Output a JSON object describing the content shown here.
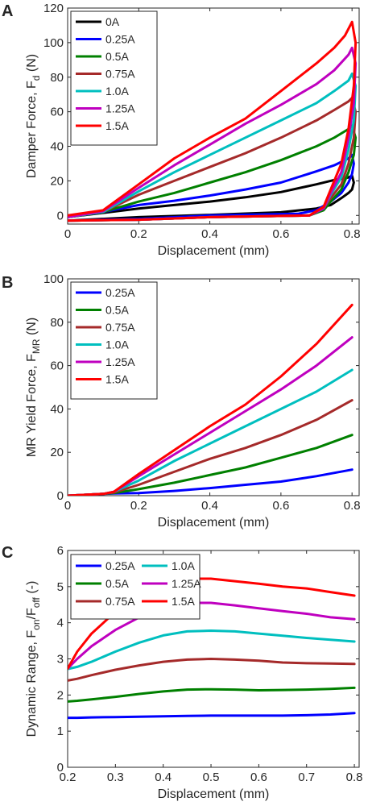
{
  "chart_data": [
    {
      "panel_label": "A",
      "type": "line",
      "xlabel": "Displacement (mm)",
      "ylabel": "Damper Force, F",
      "ylabel_sub": "d",
      "ylabel_unit": " (N)",
      "xlim": [
        0,
        0.82
      ],
      "ylim": [
        -5,
        120
      ],
      "xticks": [
        0,
        0.2,
        0.4,
        0.6,
        0.8
      ],
      "xtick_labels": [
        "0",
        "0.2",
        "0.4",
        "0.6",
        "0.8"
      ],
      "yticks": [
        0,
        20,
        40,
        60,
        80,
        100,
        120
      ],
      "ytick_labels": [
        "0",
        "20",
        "40",
        "60",
        "80",
        "100",
        "120"
      ],
      "legend_position": "top-left",
      "legend_columns": 1,
      "grid": false,
      "series": [
        {
          "name": "0A",
          "color": "#000000",
          "upper": [
            [
              0,
              -1
            ],
            [
              0.1,
              1.5
            ],
            [
              0.2,
              4
            ],
            [
              0.3,
              6
            ],
            [
              0.4,
              8
            ],
            [
              0.5,
              10.5
            ],
            [
              0.6,
              13.5
            ],
            [
              0.7,
              18
            ],
            [
              0.75,
              20.5
            ],
            [
              0.79,
              22
            ],
            [
              0.8,
              23
            ]
          ],
          "lower": [
            [
              0.8,
              23
            ],
            [
              0.805,
              19
            ],
            [
              0.8,
              15
            ],
            [
              0.79,
              13
            ],
            [
              0.77,
              10
            ],
            [
              0.74,
              6
            ],
            [
              0.7,
              4
            ],
            [
              0.6,
              1.8
            ],
            [
              0.4,
              0.3
            ],
            [
              0.2,
              -1
            ],
            [
              0,
              -3
            ]
          ]
        },
        {
          "name": "0.25A",
          "color": "#0000ff",
          "upper": [
            [
              0,
              -1
            ],
            [
              0.1,
              2
            ],
            [
              0.2,
              6
            ],
            [
              0.3,
              8.5
            ],
            [
              0.4,
              11.5
            ],
            [
              0.5,
              15
            ],
            [
              0.6,
              19
            ],
            [
              0.7,
              25.5
            ],
            [
              0.75,
              29
            ],
            [
              0.79,
              33
            ],
            [
              0.8,
              35
            ]
          ],
          "lower": [
            [
              0.8,
              35
            ],
            [
              0.805,
              30
            ],
            [
              0.8,
              24
            ],
            [
              0.79,
              19
            ],
            [
              0.77,
              13
            ],
            [
              0.74,
              8
            ],
            [
              0.7,
              3
            ],
            [
              0.65,
              1
            ],
            [
              0.4,
              0
            ],
            [
              0.2,
              -2
            ],
            [
              0,
              -3
            ]
          ]
        },
        {
          "name": "0.5A",
          "color": "#008000",
          "upper": [
            [
              0,
              -1
            ],
            [
              0.1,
              2
            ],
            [
              0.2,
              8
            ],
            [
              0.3,
              13
            ],
            [
              0.4,
              19
            ],
            [
              0.5,
              25
            ],
            [
              0.6,
              32
            ],
            [
              0.7,
              40
            ],
            [
              0.75,
              45
            ],
            [
              0.79,
              50
            ],
            [
              0.8,
              52
            ]
          ],
          "lower": [
            [
              0.8,
              52
            ],
            [
              0.81,
              45
            ],
            [
              0.805,
              35
            ],
            [
              0.79,
              25
            ],
            [
              0.77,
              15
            ],
            [
              0.74,
              8
            ],
            [
              0.72,
              3
            ],
            [
              0.68,
              0
            ],
            [
              0.4,
              -1
            ],
            [
              0.2,
              -2.5
            ],
            [
              0,
              -3
            ]
          ]
        },
        {
          "name": "0.75A",
          "color": "#a52a2a",
          "upper": [
            [
              0,
              -1
            ],
            [
              0.1,
              2
            ],
            [
              0.2,
              12
            ],
            [
              0.3,
              20
            ],
            [
              0.4,
              28
            ],
            [
              0.5,
              36
            ],
            [
              0.6,
              45
            ],
            [
              0.7,
              55
            ],
            [
              0.75,
              61
            ],
            [
              0.79,
              66
            ],
            [
              0.8,
              68
            ]
          ],
          "lower": [
            [
              0.8,
              68
            ],
            [
              0.81,
              60
            ],
            [
              0.805,
              45
            ],
            [
              0.79,
              30
            ],
            [
              0.77,
              18
            ],
            [
              0.74,
              10
            ],
            [
              0.72,
              4
            ],
            [
              0.68,
              0
            ],
            [
              0.4,
              -1
            ],
            [
              0.2,
              -2.5
            ],
            [
              0,
              -3
            ]
          ]
        },
        {
          "name": "1.0A",
          "color": "#00bfbf",
          "upper": [
            [
              0,
              -1
            ],
            [
              0.1,
              2
            ],
            [
              0.2,
              14
            ],
            [
              0.3,
              25
            ],
            [
              0.4,
              35
            ],
            [
              0.5,
              45
            ],
            [
              0.6,
              55
            ],
            [
              0.7,
              65
            ],
            [
              0.75,
              72
            ],
            [
              0.79,
              78
            ],
            [
              0.8,
              82
            ]
          ],
          "lower": [
            [
              0.8,
              82
            ],
            [
              0.81,
              75
            ],
            [
              0.805,
              55
            ],
            [
              0.79,
              38
            ],
            [
              0.77,
              22
            ],
            [
              0.74,
              12
            ],
            [
              0.72,
              4
            ],
            [
              0.68,
              0
            ],
            [
              0.4,
              -1
            ],
            [
              0.2,
              -2.5
            ],
            [
              0,
              -3
            ]
          ]
        },
        {
          "name": "1.25A",
          "color": "#bf00bf",
          "upper": [
            [
              0,
              -1
            ],
            [
              0.1,
              2.5
            ],
            [
              0.2,
              16
            ],
            [
              0.3,
              29
            ],
            [
              0.4,
              41
            ],
            [
              0.5,
              53
            ],
            [
              0.6,
              64
            ],
            [
              0.7,
              76
            ],
            [
              0.75,
              84
            ],
            [
              0.79,
              93
            ],
            [
              0.8,
              97
            ]
          ],
          "lower": [
            [
              0.8,
              97
            ],
            [
              0.81,
              88
            ],
            [
              0.805,
              65
            ],
            [
              0.79,
              45
            ],
            [
              0.77,
              25
            ],
            [
              0.74,
              13
            ],
            [
              0.72,
              4
            ],
            [
              0.68,
              0
            ],
            [
              0.4,
              -1
            ],
            [
              0.2,
              -2.5
            ],
            [
              0,
              -3
            ]
          ]
        },
        {
          "name": "1.5A",
          "color": "#ff0000",
          "upper": [
            [
              0,
              0
            ],
            [
              0.1,
              3
            ],
            [
              0.2,
              18
            ],
            [
              0.3,
              33
            ],
            [
              0.4,
              45
            ],
            [
              0.5,
              56
            ],
            [
              0.6,
              72
            ],
            [
              0.7,
              88
            ],
            [
              0.75,
              97
            ],
            [
              0.78,
              104
            ],
            [
              0.8,
              112
            ]
          ],
          "lower": [
            [
              0.8,
              112
            ],
            [
              0.81,
              100
            ],
            [
              0.805,
              75
            ],
            [
              0.79,
              50
            ],
            [
              0.77,
              30
            ],
            [
              0.74,
              15
            ],
            [
              0.72,
              5
            ],
            [
              0.68,
              0
            ],
            [
              0.4,
              -1
            ],
            [
              0.2,
              -2.5
            ],
            [
              0,
              -3
            ]
          ]
        }
      ]
    },
    {
      "panel_label": "B",
      "type": "line",
      "xlabel": "Displacement (mm)",
      "ylabel": "MR Yield Force, F",
      "ylabel_sub": "MR",
      "ylabel_unit": " (N)",
      "xlim": [
        0,
        0.82
      ],
      "ylim": [
        0,
        100
      ],
      "xticks": [
        0,
        0.2,
        0.4,
        0.6,
        0.8
      ],
      "xtick_labels": [
        "0",
        "0.2",
        "0.4",
        "0.6",
        "0.8"
      ],
      "yticks": [
        0,
        20,
        40,
        60,
        80,
        100
      ],
      "ytick_labels": [
        "0",
        "20",
        "40",
        "60",
        "80",
        "100"
      ],
      "legend_position": "top-left",
      "legend_columns": 1,
      "grid": false,
      "x": [
        0,
        0.1,
        0.13,
        0.2,
        0.3,
        0.4,
        0.5,
        0.6,
        0.7,
        0.8
      ],
      "series": [
        {
          "name": "0.25A",
          "color": "#0000ff",
          "values": [
            0,
            0.8,
            1,
            1.2,
            2.2,
            3.5,
            5,
            6.5,
            9,
            12
          ]
        },
        {
          "name": "0.5A",
          "color": "#008000",
          "values": [
            0,
            0.8,
            1.2,
            3,
            6,
            9.5,
            13,
            17.5,
            22,
            28
          ]
        },
        {
          "name": "0.75A",
          "color": "#a52a2a",
          "values": [
            0,
            0.8,
            1.5,
            5,
            11,
            17,
            22,
            28,
            35,
            44
          ]
        },
        {
          "name": "1.0A",
          "color": "#00bfbf",
          "values": [
            0,
            0.8,
            1.8,
            7,
            16,
            24,
            32,
            40,
            48,
            58
          ]
        },
        {
          "name": "1.25A",
          "color": "#bf00bf",
          "values": [
            0,
            0.8,
            1.8,
            9,
            19,
            29,
            39,
            49,
            60,
            73
          ]
        },
        {
          "name": "1.5A",
          "color": "#ff0000",
          "values": [
            0,
            0.8,
            1.8,
            10,
            21,
            32,
            42,
            55,
            70,
            88
          ]
        }
      ]
    },
    {
      "panel_label": "C",
      "type": "line",
      "xlabel": "Displacement (mm)",
      "ylabel": "Dynamic Range, F",
      "ylabel_sub": "on",
      "ylabel_mid": "/F",
      "ylabel_sub2": "off",
      "ylabel_unit": " (-)",
      "xlim": [
        0.2,
        0.81
      ],
      "ylim": [
        0,
        6
      ],
      "xticks": [
        0.2,
        0.3,
        0.4,
        0.5,
        0.6,
        0.7,
        0.8
      ],
      "xtick_labels": [
        "0.2",
        "0.3",
        "0.4",
        "0.5",
        "0.6",
        "0.7",
        "0.8"
      ],
      "yticks": [
        0,
        1,
        2,
        3,
        4,
        5,
        6
      ],
      "ytick_labels": [
        "0",
        "1",
        "2",
        "3",
        "4",
        "5",
        "6"
      ],
      "legend_position": "top-left",
      "legend_columns": 2,
      "grid": false,
      "x": [
        0.2,
        0.22,
        0.25,
        0.3,
        0.35,
        0.4,
        0.45,
        0.5,
        0.55,
        0.6,
        0.65,
        0.7,
        0.75,
        0.8
      ],
      "series": [
        {
          "name": "0.25A",
          "color": "#0000ff",
          "values": [
            1.37,
            1.37,
            1.38,
            1.39,
            1.4,
            1.41,
            1.42,
            1.43,
            1.43,
            1.43,
            1.43,
            1.44,
            1.46,
            1.5
          ]
        },
        {
          "name": "0.5A",
          "color": "#008000",
          "values": [
            1.82,
            1.84,
            1.88,
            1.95,
            2.03,
            2.1,
            2.15,
            2.16,
            2.15,
            2.13,
            2.14,
            2.15,
            2.17,
            2.2
          ]
        },
        {
          "name": "0.75A",
          "color": "#a52a2a",
          "values": [
            2.4,
            2.45,
            2.55,
            2.7,
            2.82,
            2.92,
            2.98,
            3.0,
            2.98,
            2.95,
            2.9,
            2.88,
            2.87,
            2.86
          ]
        },
        {
          "name": "1.0A",
          "color": "#00bfbf",
          "values": [
            2.72,
            2.78,
            2.92,
            3.2,
            3.45,
            3.65,
            3.76,
            3.78,
            3.76,
            3.7,
            3.64,
            3.58,
            3.53,
            3.48
          ]
        },
        {
          "name": "1.25A",
          "color": "#bf00bf",
          "values": [
            2.73,
            3.0,
            3.35,
            3.8,
            4.15,
            4.4,
            4.55,
            4.55,
            4.48,
            4.4,
            4.32,
            4.25,
            4.15,
            4.1
          ]
        },
        {
          "name": "1.5A",
          "color": "#ff0000",
          "values": [
            2.73,
            3.2,
            3.7,
            4.3,
            4.75,
            5.05,
            5.22,
            5.22,
            5.15,
            5.08,
            5.0,
            4.95,
            4.85,
            4.75
          ]
        }
      ]
    }
  ]
}
